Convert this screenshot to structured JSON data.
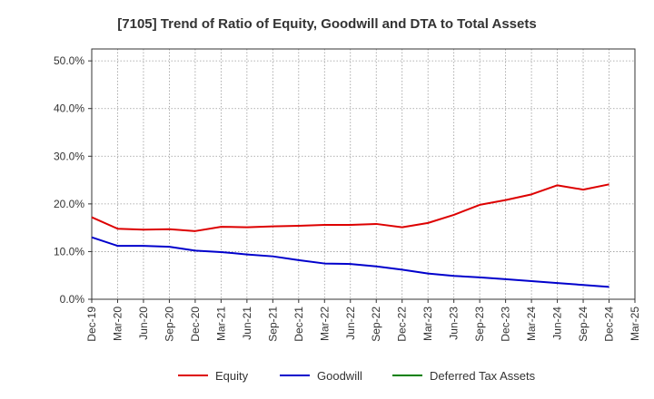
{
  "chart_data": {
    "type": "line",
    "title": "[7105]  Trend of Ratio of Equity, Goodwill and DTA to Total Assets",
    "xlabel": "",
    "ylabel": "",
    "ylim": [
      0,
      52.5
    ],
    "y_ticks": [
      0,
      10,
      20,
      30,
      40,
      50
    ],
    "y_tick_labels": [
      "0.0%",
      "10.0%",
      "20.0%",
      "30.0%",
      "40.0%",
      "50.0%"
    ],
    "grid": true,
    "legend_position": "bottom",
    "categories": [
      "Dec-19",
      "Mar-20",
      "Jun-20",
      "Sep-20",
      "Dec-20",
      "Mar-21",
      "Jun-21",
      "Sep-21",
      "Dec-21",
      "Mar-22",
      "Jun-22",
      "Sep-22",
      "Dec-22",
      "Mar-23",
      "Jun-23",
      "Sep-23",
      "Dec-23",
      "Mar-24",
      "Jun-24",
      "Sep-24",
      "Dec-24",
      "Mar-25"
    ],
    "series": [
      {
        "name": "Equity",
        "color": "#dd0000",
        "values": [
          17.2,
          14.8,
          14.6,
          14.7,
          14.3,
          15.2,
          15.1,
          15.3,
          15.4,
          15.6,
          15.6,
          15.8,
          15.1,
          16.0,
          17.7,
          19.8,
          20.8,
          22.0,
          23.9,
          23.0,
          24.1,
          null
        ]
      },
      {
        "name": "Goodwill",
        "color": "#0000cc",
        "values": [
          13.0,
          11.2,
          11.2,
          11.0,
          10.2,
          9.9,
          9.4,
          9.0,
          8.2,
          7.5,
          7.4,
          6.9,
          6.2,
          5.4,
          4.9,
          4.6,
          4.2,
          3.8,
          3.4,
          3.0,
          2.6,
          null
        ]
      },
      {
        "name": "Deferred Tax Assets",
        "color": "#008000",
        "values": [
          null,
          null,
          null,
          null,
          null,
          null,
          null,
          null,
          null,
          null,
          null,
          null,
          null,
          null,
          null,
          null,
          null,
          null,
          null,
          null,
          null,
          null
        ]
      }
    ]
  }
}
